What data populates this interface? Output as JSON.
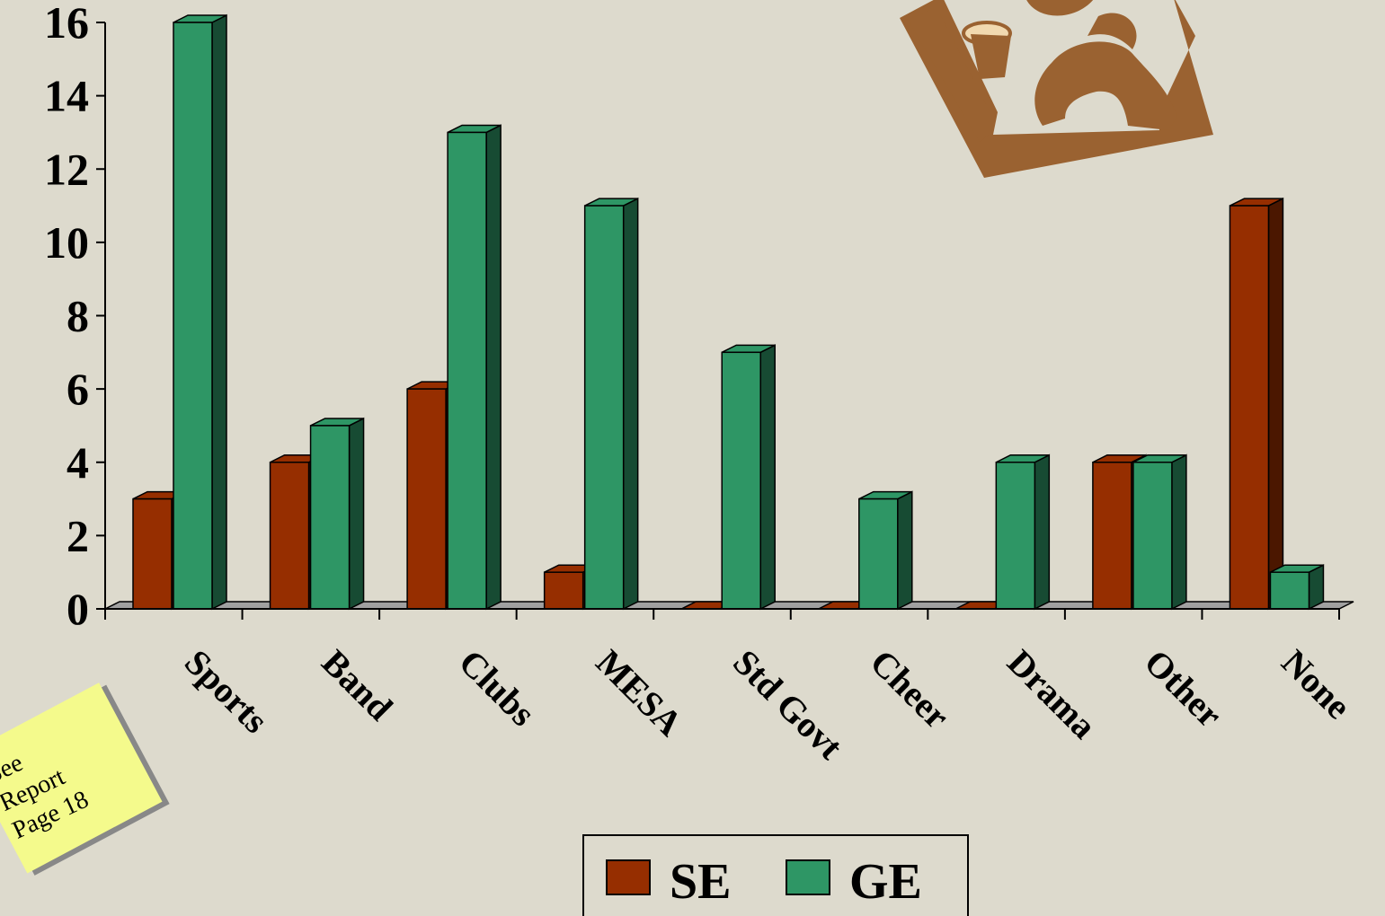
{
  "chart_data": {
    "type": "bar",
    "categories": [
      "Sports",
      "Band",
      "Clubs",
      "MESA",
      "Std Govt",
      "Cheer",
      "Drama",
      "Other",
      "None"
    ],
    "series": [
      {
        "name": "SE",
        "values": [
          3,
          4,
          6,
          1,
          0,
          0,
          0,
          4,
          11
        ]
      },
      {
        "name": "GE",
        "values": [
          16,
          5,
          13,
          11,
          7,
          3,
          4,
          4,
          1
        ]
      }
    ],
    "yticks": [
      0,
      2,
      4,
      6,
      8,
      10,
      12,
      14,
      16
    ],
    "ylim": [
      0,
      16
    ],
    "legend_position": "bottom-center",
    "colors": {
      "SE": "#962E00",
      "GE": "#2E9665",
      "background": "#DDDACD"
    }
  },
  "note": {
    "lines": [
      "See",
      "Report",
      "Page 18"
    ]
  }
}
